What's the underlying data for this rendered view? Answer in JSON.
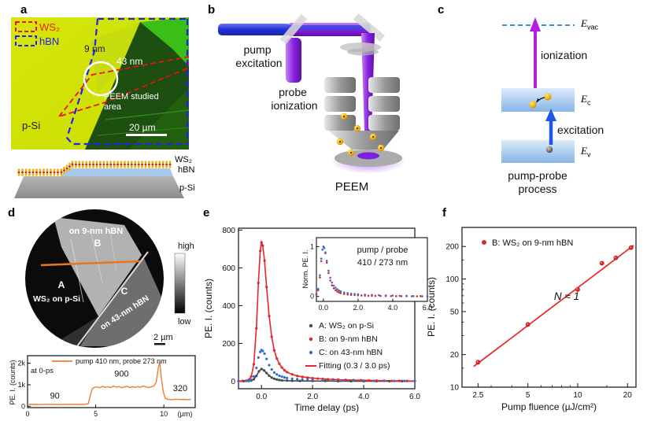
{
  "colors": {
    "accent_orange": "#ed7d31",
    "series_red": "#e8262a",
    "series_blue": "#2f6fd2",
    "series_gray": "#4a4a4a",
    "pump_blue": "#2a35d8",
    "probe_purple": "#8a22dd",
    "hbn_blue": "#a9c9ec",
    "flake_dark_green": "#1c4f10",
    "bg_yellow_green": "#d3e300"
  },
  "panels": {
    "a": "a",
    "b": "b",
    "c": "c",
    "d": "d",
    "e": "e",
    "f": "f"
  },
  "panel_a": {
    "legend_ws2": "WS₂",
    "legend_hbn": "hBN",
    "thickness_9": "9 nm",
    "thickness_43": "43 nm",
    "peem_area_line1": "PEEM studied",
    "peem_area_line2": "area",
    "substrate": "p-Si",
    "scalebar": "20 µm",
    "stack_ws2": "WS₂",
    "stack_hbn": "hBN",
    "stack_psi": "p-Si"
  },
  "panel_b": {
    "pump_line1": "pump",
    "pump_line2": "excitation",
    "probe_line1": "probe",
    "probe_line2": "ionization",
    "instrument": "PEEM"
  },
  "panel_c": {
    "evac": {
      "base": "E",
      "sub": "vac"
    },
    "ec": {
      "base": "E",
      "sub": "c"
    },
    "ev": {
      "base": "E",
      "sub": "v"
    },
    "ionization": "ionization",
    "excitation": "excitation",
    "caption_line1": "pump-probe",
    "caption_line2": "process"
  },
  "panel_d": {
    "region_b_caption": "on 9-nm hBN",
    "region_b": "B",
    "region_a": "A",
    "region_a_caption": "WS₂ on p-Si",
    "region_c": "C",
    "region_c_caption": "on 43-nm hBN",
    "colorbar_high": "high",
    "colorbar_low": "low",
    "scalebar": "2 µm"
  },
  "chart_data": [
    {
      "id": "profile",
      "type": "line",
      "panel": "d",
      "legend": "pump 410 nm, probe 273 nm",
      "note": "at 0-ps",
      "ylabel": "PE. I. (counts)",
      "x_unit_label": "(µm)",
      "xlim": [
        0,
        12.3
      ],
      "ylim": [
        -60,
        2350
      ],
      "xticks": [
        {
          "v": 0,
          "label": "0"
        },
        {
          "v": 5,
          "label": "5"
        },
        {
          "v": 10,
          "label": "10"
        }
      ],
      "yticks": [
        {
          "v": 0,
          "label": "0"
        },
        {
          "v": 1000,
          "label": "1k"
        },
        {
          "v": 2000,
          "label": "2k"
        }
      ],
      "annotations": [
        {
          "text": "90",
          "x": 2.0,
          "y": 360
        },
        {
          "text": "900",
          "x": 6.9,
          "y": 1390
        },
        {
          "text": "320",
          "x": 11.2,
          "y": 700
        }
      ],
      "color": "#ed7d31",
      "points": [
        [
          0,
          95
        ],
        [
          0.3,
          85
        ],
        [
          0.6,
          92
        ],
        [
          0.9,
          80
        ],
        [
          1.2,
          95
        ],
        [
          1.5,
          88
        ],
        [
          1.8,
          95
        ],
        [
          2.1,
          85
        ],
        [
          2.4,
          90
        ],
        [
          2.7,
          95
        ],
        [
          3.0,
          88
        ],
        [
          3.3,
          92
        ],
        [
          3.6,
          85
        ],
        [
          3.9,
          95
        ],
        [
          4.2,
          90
        ],
        [
          4.45,
          120
        ],
        [
          4.6,
          500
        ],
        [
          4.75,
          820
        ],
        [
          4.9,
          880
        ],
        [
          5.1,
          900
        ],
        [
          5.3,
          860
        ],
        [
          5.5,
          930
        ],
        [
          5.7,
          880
        ],
        [
          5.9,
          910
        ],
        [
          6.1,
          870
        ],
        [
          6.3,
          940
        ],
        [
          6.5,
          890
        ],
        [
          6.7,
          920
        ],
        [
          6.9,
          860
        ],
        [
          7.1,
          900
        ],
        [
          7.3,
          930
        ],
        [
          7.5,
          870
        ],
        [
          7.7,
          910
        ],
        [
          7.9,
          880
        ],
        [
          8.1,
          920
        ],
        [
          8.3,
          890
        ],
        [
          8.5,
          940
        ],
        [
          8.7,
          900
        ],
        [
          8.9,
          870
        ],
        [
          9.1,
          910
        ],
        [
          9.3,
          950
        ],
        [
          9.45,
          1150
        ],
        [
          9.6,
          1800
        ],
        [
          9.7,
          2060
        ],
        [
          9.8,
          1400
        ],
        [
          9.95,
          700
        ],
        [
          10.1,
          380
        ],
        [
          10.3,
          320
        ],
        [
          10.6,
          310
        ],
        [
          10.9,
          330
        ],
        [
          11.2,
          315
        ],
        [
          11.5,
          325
        ],
        [
          11.8,
          310
        ],
        [
          12.0,
          320
        ]
      ]
    },
    {
      "id": "decay",
      "type": "scatter",
      "panel": "e",
      "xlabel": "Time delay (ps)",
      "ylabel": "PE. I. (counts)",
      "xlim": [
        -0.9,
        6
      ],
      "ylim": [
        -40,
        810
      ],
      "xticks": [
        {
          "v": 0,
          "label": "0.0"
        },
        {
          "v": 2,
          "label": "2.0"
        },
        {
          "v": 4,
          "label": "4.0"
        },
        {
          "v": 6,
          "label": "6.0"
        }
      ],
      "yticks": [
        {
          "v": 0,
          "label": "0"
        },
        {
          "v": 200,
          "label": "200"
        },
        {
          "v": 400,
          "label": "400"
        },
        {
          "v": 600,
          "label": "600"
        },
        {
          "v": 800,
          "label": "800"
        }
      ],
      "series": [
        {
          "name": "A: WS₂ on p-Si",
          "color": "#4a4a4a",
          "marker": "dot",
          "line": true,
          "points": [
            [
              -0.9,
              0
            ],
            [
              -0.7,
              0
            ],
            [
              -0.5,
              1
            ],
            [
              -0.4,
              3
            ],
            [
              -0.3,
              10
            ],
            [
              -0.2,
              28
            ],
            [
              -0.1,
              52
            ],
            [
              0,
              65
            ],
            [
              0.1,
              57
            ],
            [
              0.2,
              43
            ],
            [
              0.3,
              29
            ],
            [
              0.4,
              19
            ],
            [
              0.5,
              13
            ],
            [
              0.6,
              9
            ],
            [
              0.7,
              6
            ],
            [
              0.8,
              4
            ],
            [
              1,
              3
            ],
            [
              1.2,
              2
            ],
            [
              1.5,
              1
            ],
            [
              2,
              1
            ],
            [
              2.5,
              1
            ],
            [
              3,
              0
            ],
            [
              3.5,
              0
            ],
            [
              4,
              0
            ],
            [
              4.5,
              0
            ],
            [
              5,
              0
            ],
            [
              5.5,
              0
            ],
            [
              6,
              0
            ]
          ]
        },
        {
          "name": "B: on 9-nm hBN",
          "color": "#e8262a",
          "marker": "dot",
          "line": false,
          "points": [
            [
              -0.9,
              0
            ],
            [
              -0.75,
              1
            ],
            [
              -0.6,
              3
            ],
            [
              -0.5,
              8
            ],
            [
              -0.4,
              25
            ],
            [
              -0.3,
              90
            ],
            [
              -0.2,
              280
            ],
            [
              -0.12,
              520
            ],
            [
              -0.05,
              690
            ],
            [
              0,
              735
            ],
            [
              0.05,
              718
            ],
            [
              0.12,
              638
            ],
            [
              0.2,
              498
            ],
            [
              0.3,
              345
            ],
            [
              0.4,
              235
            ],
            [
              0.5,
              163
            ],
            [
              0.6,
              120
            ],
            [
              0.7,
              92
            ],
            [
              0.8,
              72
            ],
            [
              0.9,
              58
            ],
            [
              1,
              48
            ],
            [
              1.2,
              36
            ],
            [
              1.4,
              28
            ],
            [
              1.6,
              23
            ],
            [
              1.8,
              19
            ],
            [
              2,
              16
            ],
            [
              2.2,
              14
            ],
            [
              2.4,
              12
            ],
            [
              2.6,
              10
            ],
            [
              2.8,
              9
            ],
            [
              3,
              8
            ],
            [
              3.3,
              7
            ],
            [
              3.6,
              6
            ],
            [
              3.9,
              5
            ],
            [
              4.2,
              4
            ],
            [
              4.5,
              3
            ],
            [
              4.8,
              3
            ],
            [
              5.1,
              2
            ],
            [
              5.4,
              2
            ],
            [
              5.7,
              1
            ],
            [
              6,
              1
            ]
          ]
        },
        {
          "name": "C: on 43-nm hBN",
          "color": "#2f6fd2",
          "marker": "dot",
          "line": false,
          "points": [
            [
              -0.9,
              0
            ],
            [
              -0.6,
              1
            ],
            [
              -0.5,
              3
            ],
            [
              -0.4,
              8
            ],
            [
              -0.3,
              25
            ],
            [
              -0.2,
              70
            ],
            [
              -0.12,
              125
            ],
            [
              -0.05,
              155
            ],
            [
              0,
              165
            ],
            [
              0.05,
              160
            ],
            [
              0.12,
              146
            ],
            [
              0.2,
              118
            ],
            [
              0.3,
              85
            ],
            [
              0.4,
              62
            ],
            [
              0.5,
              46
            ],
            [
              0.6,
              36
            ],
            [
              0.7,
              29
            ],
            [
              0.8,
              24
            ],
            [
              0.9,
              20
            ],
            [
              1,
              17
            ],
            [
              1.2,
              13
            ],
            [
              1.4,
              11
            ],
            [
              1.6,
              9
            ],
            [
              1.8,
              8
            ],
            [
              2,
              7
            ],
            [
              2.4,
              6
            ],
            [
              2.8,
              5
            ],
            [
              3.2,
              4
            ],
            [
              3.6,
              3
            ],
            [
              4,
              3
            ],
            [
              4.4,
              2
            ],
            [
              4.8,
              2
            ],
            [
              5.2,
              1
            ],
            [
              5.6,
              1
            ],
            [
              6,
              1
            ]
          ]
        },
        {
          "name": "Fitting (0.3 / 3.0 ps)",
          "color": "#e8262a",
          "marker": "line",
          "line": true,
          "source": "B: on 9-nm hBN"
        }
      ],
      "inset": {
        "title_line1": "pump / probe",
        "title_line2": "410 / 273 nm",
        "ylabel": "Norm. PE. I.",
        "xlim": [
          -0.4,
          6
        ],
        "ylim": [
          -0.1,
          1.18
        ],
        "xticks": [
          {
            "v": 0,
            "label": "0.0"
          },
          {
            "v": 2,
            "label": "2.0"
          },
          {
            "v": 4,
            "label": "4.0"
          },
          {
            "v": 6,
            "label": "6.0"
          }
        ],
        "yticks": [
          {
            "v": 0,
            "label": "0"
          },
          {
            "v": 1,
            "label": "1"
          }
        ],
        "series": [
          "B: on 9-nm hBN",
          "C: on 43-nm hBN"
        ]
      }
    },
    {
      "id": "fluence",
      "type": "scatter-loglog",
      "panel": "f",
      "legend": "B: WS₂ on 9-nm hBN",
      "annotation": "N ≈ 1",
      "xlabel": "Pump fluence (µJ/cm²)",
      "ylabel": "PE. I. (counts)",
      "xlim": [
        2.0,
        22.5
      ],
      "ylim": [
        10,
        300
      ],
      "xticks": [
        {
          "v": 2.5,
          "label": "2.5"
        },
        {
          "v": 5,
          "label": "5"
        },
        {
          "v": 10,
          "label": "10"
        },
        {
          "v": 20,
          "label": "20"
        }
      ],
      "yticks": [
        {
          "v": 10,
          "label": "10"
        },
        {
          "v": 20,
          "label": "20"
        },
        {
          "v": 50,
          "label": "50"
        },
        {
          "v": 100,
          "label": "100"
        },
        {
          "v": 200,
          "label": "200"
        }
      ],
      "color": "#e8262a",
      "points": [
        [
          2.5,
          17
        ],
        [
          5,
          38
        ],
        [
          10,
          80
        ],
        [
          14,
          140
        ],
        [
          17,
          157
        ],
        [
          21,
          195
        ]
      ],
      "fit": [
        [
          2.35,
          15.5
        ],
        [
          21.8,
          205
        ]
      ]
    }
  ]
}
